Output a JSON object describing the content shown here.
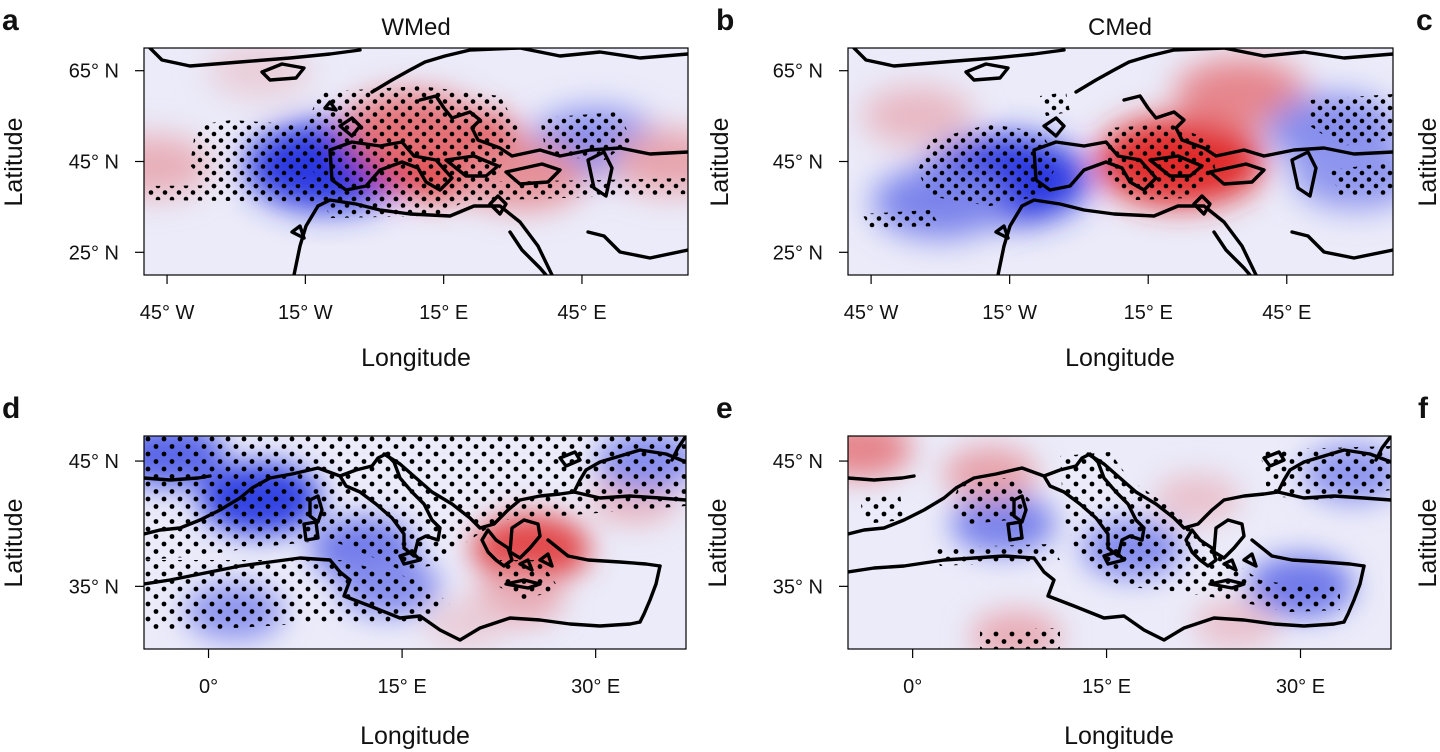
{
  "figure": {
    "panels": [
      {
        "label": "a",
        "title": "WMed",
        "region": "europe",
        "xlabel": "Longitude",
        "ylabel": "Latitude",
        "xticks": [
          "45° W",
          "15° W",
          "15° E",
          "45° E"
        ],
        "yticks": [
          "65° N",
          "45° N",
          "25° N"
        ],
        "xlim": [
          -50,
          68
        ],
        "ylim": [
          20,
          70
        ],
        "xtick_values": [
          -45,
          -15,
          15,
          45
        ],
        "ytick_values": [
          65,
          45,
          25
        ],
        "anomalies": [
          {
            "lon": -10,
            "lat": 44,
            "value": -0.95
          },
          {
            "lon": 15,
            "lat": 47,
            "value": 0.95
          },
          {
            "lon": 8,
            "lat": 52,
            "value": 0.6
          },
          {
            "lon": 48,
            "lat": 49,
            "value": -0.5
          },
          {
            "lon": 32,
            "lat": 42,
            "value": 0.45
          },
          {
            "lon": -48,
            "lat": 44,
            "value": 0.3
          },
          {
            "lon": 64,
            "lat": 45,
            "value": 0.35
          },
          {
            "lon": -25,
            "lat": 65,
            "value": 0.15
          }
        ]
      },
      {
        "label": "b",
        "title": "CMed",
        "region": "europe",
        "xlabel": "Longitude",
        "ylabel": "Latitude",
        "xticks": [
          "45° W",
          "15° W",
          "15° E",
          "45° E"
        ],
        "yticks": [
          "65° N",
          "45° N",
          "25° N"
        ],
        "xlim": [
          -50,
          68
        ],
        "ylim": [
          20,
          70
        ],
        "xtick_values": [
          -45,
          -15,
          15,
          45
        ],
        "ytick_values": [
          65,
          45,
          25
        ],
        "anomalies": [
          {
            "lon": -16,
            "lat": 41,
            "value": -0.95
          },
          {
            "lon": -30,
            "lat": 36,
            "value": -0.55
          },
          {
            "lon": 22,
            "lat": 45,
            "value": 0.95
          },
          {
            "lon": 35,
            "lat": 60,
            "value": 0.5
          },
          {
            "lon": 55,
            "lat": 52,
            "value": -0.5
          },
          {
            "lon": 60,
            "lat": 42,
            "value": -0.45
          },
          {
            "lon": -35,
            "lat": 55,
            "value": 0.25
          }
        ]
      },
      {
        "label": "d",
        "title": "",
        "region": "med",
        "xlabel": "Longitude",
        "ylabel": "Latitude",
        "xticks": [
          "0°",
          "15° E",
          "30° E"
        ],
        "yticks": [
          "45° N",
          "35° N"
        ],
        "xlim": [
          -5,
          37
        ],
        "ylim": [
          30,
          47
        ],
        "xtick_values": [
          0,
          15,
          30
        ],
        "ytick_values": [
          45,
          35
        ],
        "anomalies": [
          {
            "lon": 4,
            "lat": 42,
            "value": -0.9
          },
          {
            "lon": -3,
            "lat": 45.5,
            "value": -0.7
          },
          {
            "lon": 12,
            "lat": 38,
            "value": -0.6
          },
          {
            "lon": 14,
            "lat": 35,
            "value": -0.5
          },
          {
            "lon": 25,
            "lat": 38,
            "value": 0.8
          },
          {
            "lon": 24,
            "lat": 34,
            "value": 0.3
          },
          {
            "lon": 33,
            "lat": 42,
            "value": 0.25
          },
          {
            "lon": 2,
            "lat": 33,
            "value": -0.45
          },
          {
            "lon": 34,
            "lat": 45,
            "value": -0.5
          },
          {
            "lon": 20,
            "lat": 32,
            "value": 0.15
          }
        ]
      },
      {
        "label": "e",
        "title": "",
        "region": "med",
        "xlabel": "Longitude",
        "ylabel": "Latitude",
        "xticks": [
          "0°",
          "15° E",
          "30° E"
        ],
        "yticks": [
          "45° N",
          "35° N"
        ],
        "xlim": [
          -5,
          37
        ],
        "ylim": [
          30,
          47
        ],
        "xtick_values": [
          0,
          15,
          30
        ],
        "ytick_values": [
          45,
          35
        ],
        "anomalies": [
          {
            "lon": 7,
            "lat": 40,
            "value": -0.55
          },
          {
            "lon": 17,
            "lat": 38,
            "value": -0.5
          },
          {
            "lon": 30,
            "lat": 35,
            "value": -0.6
          },
          {
            "lon": 34,
            "lat": 44,
            "value": -0.45
          },
          {
            "lon": 6,
            "lat": 44,
            "value": 0.35
          },
          {
            "lon": -4,
            "lat": 46,
            "value": 0.5
          },
          {
            "lon": 8,
            "lat": 31,
            "value": 0.3
          },
          {
            "lon": 25,
            "lat": 32,
            "value": 0.2
          },
          {
            "lon": 22,
            "lat": 42,
            "value": 0.2
          }
        ]
      }
    ],
    "clipped_panels": [
      {
        "label": "c",
        "ylabel": "Latitude"
      },
      {
        "label": "f",
        "ylabel": "Latitude"
      }
    ],
    "colors": {
      "negative_strong": "#1f2fe0",
      "neutral": "#ebebf9",
      "positive_strong": "#e02020",
      "coast": "#000000",
      "stipple": "#000000"
    }
  }
}
